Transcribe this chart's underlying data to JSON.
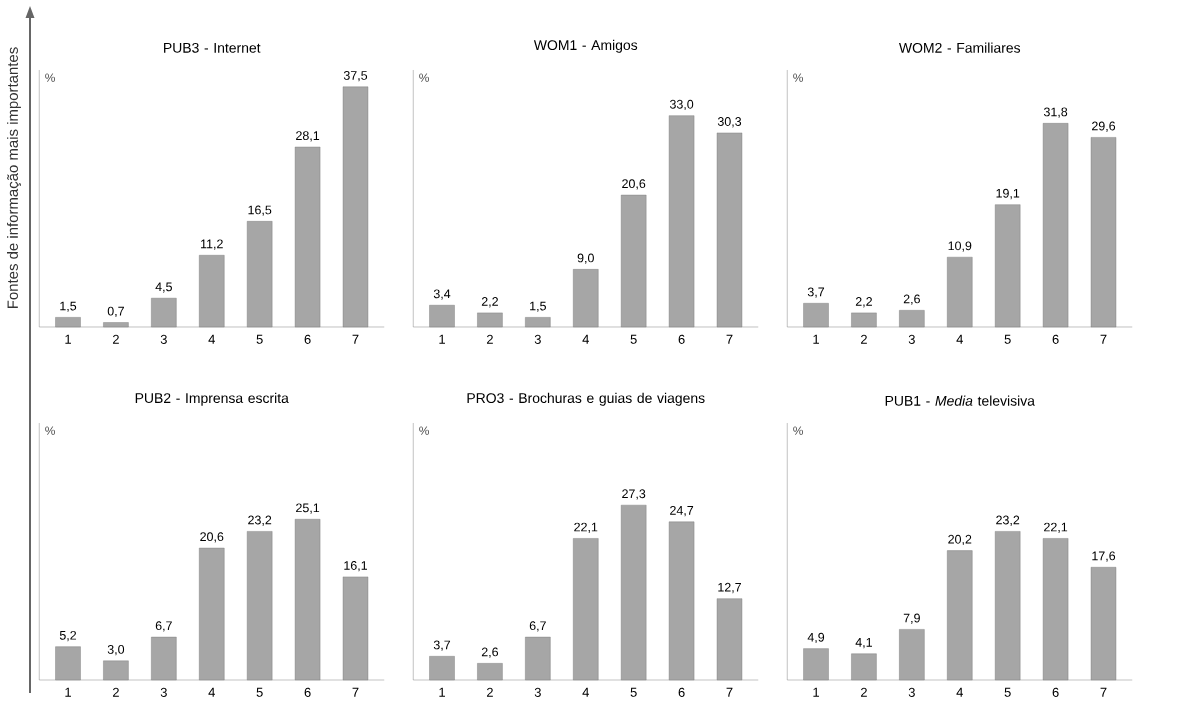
{
  "chart_data": [
    {
      "type": "bar",
      "title": "PUB3 - Internet",
      "ylabel": "%",
      "categories": [
        "1",
        "2",
        "3",
        "4",
        "5",
        "6",
        "7"
      ],
      "values": [
        1.5,
        0.7,
        4.5,
        11.2,
        16.5,
        28.1,
        37.5
      ],
      "value_labels": [
        "1,5",
        "0,7",
        "4,5",
        "11,2",
        "16,5",
        "28,1",
        "37,5"
      ],
      "color": "#a6a6a6",
      "annotations": [
        "Fontes de informação mais importantes"
      ]
    },
    {
      "type": "bar",
      "title": "WOM1 - Amigos",
      "ylabel": "%",
      "categories": [
        "1",
        "2",
        "3",
        "4",
        "5",
        "6",
        "7"
      ],
      "values": [
        3.4,
        2.2,
        1.5,
        9.0,
        20.6,
        33.0,
        30.3
      ],
      "value_labels": [
        "3,4",
        "2,2",
        "1,5",
        "9,0",
        "20,6",
        "33,0",
        "30,3"
      ],
      "color": "#a6a6a6"
    },
    {
      "type": "bar",
      "title": "WOM2 - Familiares",
      "ylabel": "%",
      "categories": [
        "1",
        "2",
        "3",
        "4",
        "5",
        "6",
        "7"
      ],
      "values": [
        3.7,
        2.2,
        2.6,
        10.9,
        19.1,
        31.8,
        29.6
      ],
      "value_labels": [
        "3,7",
        "2,2",
        "2,6",
        "10,9",
        "19,1",
        "31,8",
        "29,6"
      ],
      "color": "#a6a6a6"
    },
    {
      "type": "bar",
      "title": "PUB2 - Imprensa escrita",
      "ylabel": "%",
      "categories": [
        "1",
        "2",
        "3",
        "4",
        "5",
        "6",
        "7"
      ],
      "values": [
        5.2,
        3.0,
        6.7,
        20.6,
        23.2,
        25.1,
        16.1
      ],
      "value_labels": [
        "5,2",
        "3,0",
        "6,7",
        "20,6",
        "23,2",
        "25,1",
        "16,1"
      ],
      "color": "#a6a6a6"
    },
    {
      "type": "bar",
      "title": "PRO3 -  Brochuras e guias de viagens",
      "ylabel": "%",
      "categories": [
        "1",
        "2",
        "3",
        "4",
        "5",
        "6",
        "7"
      ],
      "values": [
        3.7,
        2.6,
        6.7,
        22.1,
        27.3,
        24.7,
        12.7
      ],
      "value_labels": [
        "3,7",
        "2,6",
        "6,7",
        "22,1",
        "27,3",
        "24,7",
        "12,7"
      ],
      "color": "#a6a6a6"
    },
    {
      "type": "bar",
      "title": "PUB1 - *Media* televisiva",
      "ylabel": "%",
      "categories": [
        "1",
        "2",
        "3",
        "4",
        "5",
        "6",
        "7"
      ],
      "values": [
        4.9,
        4.1,
        7.9,
        20.2,
        23.2,
        22.1,
        17.6
      ],
      "value_labels": [
        "4,9",
        "4,1",
        "7,9",
        "20,2",
        "23,2",
        "22,1",
        "17,6"
      ],
      "color": "#a6a6a6"
    }
  ]
}
